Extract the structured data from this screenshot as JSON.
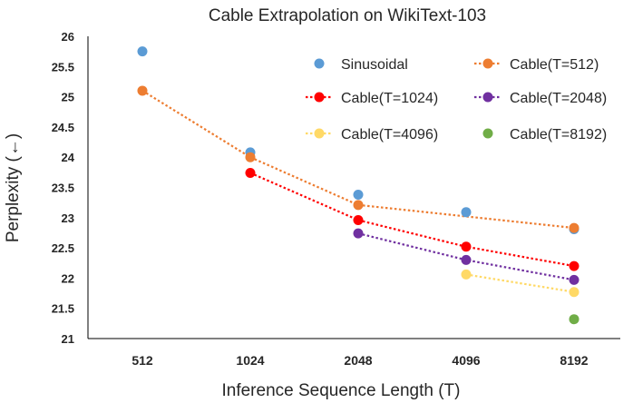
{
  "chart_data": {
    "type": "line",
    "title": "Cable Extrapolation on WikiText-103",
    "xlabel": "Inference Sequence Length (T)",
    "ylabel": "Perplexity (←)",
    "categories": [
      "512",
      "1024",
      "2048",
      "4096",
      "8192"
    ],
    "yticks": [
      "21",
      "21.5",
      "22",
      "22.5",
      "23",
      "23.5",
      "24",
      "24.5",
      "25",
      "25.5",
      "26"
    ],
    "ylim": [
      21,
      26
    ],
    "grid": false,
    "legend_position": "top-right",
    "series": [
      {
        "name": "Sinusoidal",
        "color": "#5B9BD5",
        "line": false,
        "values": [
          25.75,
          24.08,
          23.38,
          23.09,
          22.81
        ]
      },
      {
        "name": "Cable(T=512)",
        "color": "#ED7D31",
        "line": true,
        "values": [
          25.1,
          24.0,
          23.21,
          null,
          22.83
        ]
      },
      {
        "name": "Cable(T=1024)",
        "color": "#FF0000",
        "line": true,
        "values": [
          null,
          23.74,
          22.96,
          22.52,
          22.2
        ]
      },
      {
        "name": "Cable(T=2048)",
        "color": "#7030A0",
        "line": true,
        "values": [
          null,
          null,
          22.74,
          22.3,
          21.97
        ]
      },
      {
        "name": "Cable(T=4096)",
        "color": "#FFD966",
        "line": true,
        "values": [
          null,
          null,
          null,
          22.06,
          21.77
        ]
      },
      {
        "name": "Cable(T=8192)",
        "color": "#70AD47",
        "line": false,
        "values": [
          null,
          null,
          null,
          null,
          21.32
        ]
      }
    ]
  }
}
